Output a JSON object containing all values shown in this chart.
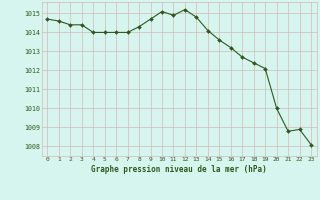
{
  "hours": [
    0,
    1,
    2,
    3,
    4,
    5,
    6,
    7,
    8,
    9,
    10,
    11,
    12,
    13,
    14,
    15,
    16,
    17,
    18,
    19,
    20,
    21,
    22,
    23
  ],
  "pressure": [
    1014.7,
    1014.6,
    1014.4,
    1014.4,
    1014.0,
    1014.0,
    1014.0,
    1014.0,
    1014.3,
    1014.7,
    1015.1,
    1014.9,
    1015.2,
    1014.8,
    1014.1,
    1013.6,
    1013.2,
    1012.7,
    1012.4,
    1012.1,
    1010.0,
    1008.8,
    1008.9,
    1008.1
  ],
  "line_color": "#2d5a1b",
  "marker_color": "#2d5a1b",
  "bg_color": "#d6f5ee",
  "grid_color_major": "#d4b8b8",
  "grid_color_minor": "#e8d0d0",
  "xlabel": "Graphe pression niveau de la mer (hPa)",
  "xlabel_color": "#2d5a1b",
  "tick_color": "#2d5a1b",
  "ylim_min": 1007.5,
  "ylim_max": 1015.6,
  "yticks": [
    1008,
    1009,
    1010,
    1011,
    1012,
    1013,
    1014,
    1015
  ],
  "xticks": [
    0,
    1,
    2,
    3,
    4,
    5,
    6,
    7,
    8,
    9,
    10,
    11,
    12,
    13,
    14,
    15,
    16,
    17,
    18,
    19,
    20,
    21,
    22,
    23
  ]
}
